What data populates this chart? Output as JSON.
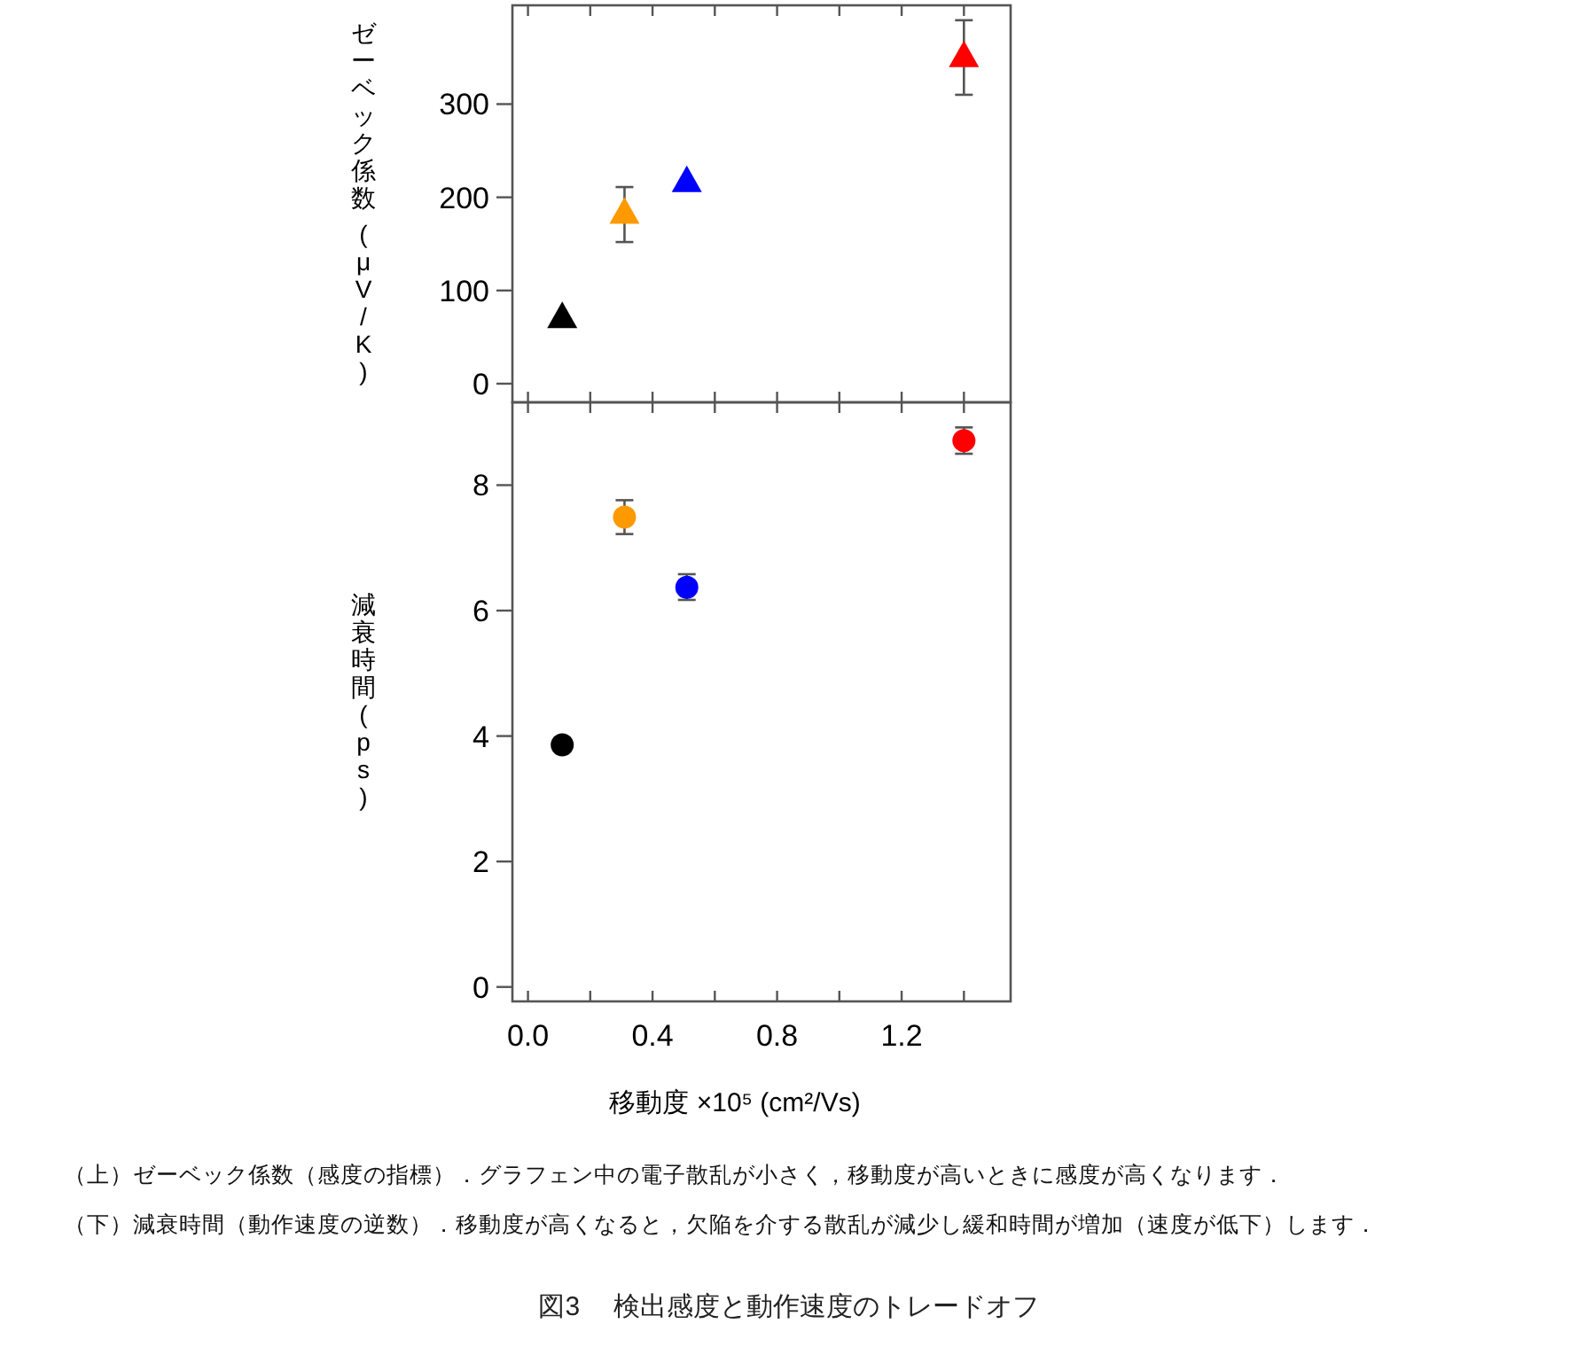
{
  "chart_data": [
    {
      "type": "scatter",
      "ylabel": "ゼーベック係数 (μV/K)",
      "marker": "triangle",
      "tick_labels": "y",
      "x": [
        0.11,
        0.31,
        0.51,
        1.4
      ],
      "values": [
        71,
        183,
        217,
        351
      ],
      "colors": [
        "#000000",
        "#ff9900",
        "#0000ff",
        "#ff0000"
      ],
      "errors": [
        null,
        [
          152,
          211
        ],
        null,
        [
          310,
          390
        ]
      ],
      "xlim": [
        -0.05,
        1.55
      ],
      "xticks": [
        {
          "value": 0,
          "label": null
        },
        {
          "value": 0.2,
          "label": null
        },
        {
          "value": 0.4,
          "label": null
        },
        {
          "value": 0.6,
          "label": null
        },
        {
          "value": 0.8,
          "label": null
        },
        {
          "value": 1.0,
          "label": null
        },
        {
          "value": 1.2,
          "label": null
        },
        {
          "value": 1.4,
          "label": null
        }
      ],
      "ylim": [
        -20,
        406
      ],
      "yticks": [
        0,
        100,
        200,
        300
      ]
    },
    {
      "type": "scatter",
      "ylabel": "減衰時間(ps)",
      "xlabel": "移動度 ×10⁵ (cm²/Vs)",
      "marker": "circle",
      "x": [
        0.11,
        0.31,
        0.51,
        1.4
      ],
      "values": [
        3.86,
        7.49,
        6.37,
        8.71
      ],
      "colors": [
        "#000000",
        "#ff9900",
        "#0000ff",
        "#ff0000"
      ],
      "errors": [
        null,
        [
          7.22,
          7.76
        ],
        [
          6.17,
          6.58
        ],
        [
          8.5,
          8.92
        ]
      ],
      "xlim": [
        -0.05,
        1.55
      ],
      "xticks": [
        {
          "value": 0,
          "label": "0.0"
        },
        {
          "value": 0.2,
          "label": null
        },
        {
          "value": 0.4,
          "label": "0.4"
        },
        {
          "value": 0.6,
          "label": null
        },
        {
          "value": 0.8,
          "label": "0.8"
        },
        {
          "value": 1.0,
          "label": null
        },
        {
          "value": 1.2,
          "label": "1.2"
        },
        {
          "value": 1.4,
          "label": null
        }
      ],
      "ylim": [
        -0.23,
        9.32
      ],
      "yticks": [
        0,
        2,
        4,
        6,
        8
      ],
      "annotations": [
        "（上）ゼーベック係数（感度の指標）．グラフェン中の電子散乱が小さく，移動度が高いときに感度が高くなります．",
        "（下）減衰時間（動作速度の逆数）．移動度が高くなると，欠陥を介する散乱が減少し緩和時間が増加（速度が低下）します．",
        "図3　 検出感度と動作速度のトレードオフ"
      ]
    }
  ]
}
